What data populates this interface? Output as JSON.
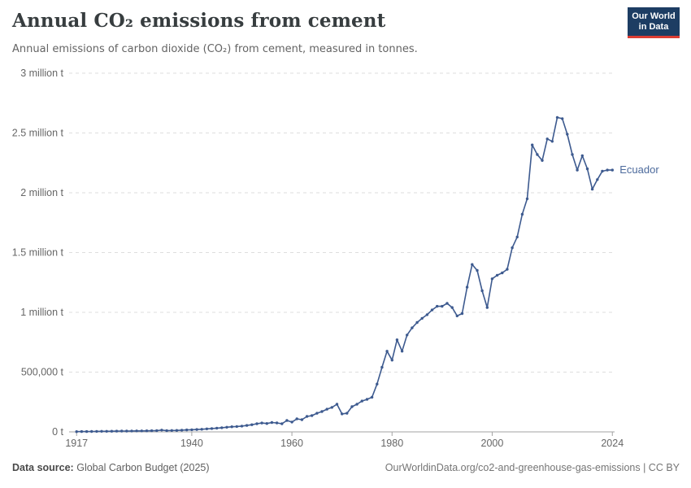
{
  "header": {
    "title": "Annual CO₂ emissions from cement",
    "subtitle": "Annual emissions of carbon dioxide (CO₂) from cement, measured in tonnes."
  },
  "logo": {
    "line1": "Our World",
    "line2": "in Data",
    "bg_color": "#1d3d63",
    "accent_color": "#dc3d33"
  },
  "footer": {
    "source_label": "Data source:",
    "source_value": "Global Carbon Budget (2025)",
    "attribution": "OurWorldinData.org/co2-and-greenhouse-gas-emissions | CC BY"
  },
  "chart_data": {
    "type": "line",
    "entity": "Ecuador",
    "unit": "tonnes",
    "grid": true,
    "xlim": [
      1915.5,
      2025.5
    ],
    "ylim": [
      0,
      3000000
    ],
    "x_ticks": [
      1917,
      1940,
      1960,
      1980,
      2000,
      2024
    ],
    "y_ticks": [
      {
        "value": 0,
        "label": "0 t"
      },
      {
        "value": 500000,
        "label": "500,000 t"
      },
      {
        "value": 1000000,
        "label": "1 million t"
      },
      {
        "value": 1500000,
        "label": "1.5 million t"
      },
      {
        "value": 2000000,
        "label": "2 million t"
      },
      {
        "value": 2500000,
        "label": "2.5 million t"
      },
      {
        "value": 3000000,
        "label": "3 million t"
      }
    ],
    "colors": {
      "line": "#3d5a8f",
      "entity_label": "#4c6a9c",
      "grid": "#dedede",
      "axis": "#a3a3a3",
      "tick_text": "#666666"
    },
    "points": [
      [
        1917,
        2000
      ],
      [
        1918,
        2500
      ],
      [
        1919,
        3000
      ],
      [
        1920,
        3500
      ],
      [
        1921,
        4000
      ],
      [
        1922,
        4500
      ],
      [
        1923,
        5000
      ],
      [
        1924,
        5500
      ],
      [
        1925,
        6000
      ],
      [
        1926,
        6500
      ],
      [
        1927,
        7000
      ],
      [
        1928,
        7500
      ],
      [
        1929,
        8000
      ],
      [
        1930,
        8500
      ],
      [
        1931,
        9000
      ],
      [
        1932,
        9500
      ],
      [
        1933,
        10000
      ],
      [
        1934,
        15000
      ],
      [
        1935,
        10500
      ],
      [
        1936,
        11500
      ],
      [
        1937,
        12500
      ],
      [
        1938,
        14000
      ],
      [
        1939,
        16000
      ],
      [
        1940,
        18000
      ],
      [
        1941,
        20000
      ],
      [
        1942,
        22000
      ],
      [
        1943,
        25000
      ],
      [
        1944,
        28000
      ],
      [
        1945,
        31000
      ],
      [
        1946,
        35000
      ],
      [
        1947,
        39000
      ],
      [
        1948,
        43000
      ],
      [
        1949,
        45000
      ],
      [
        1950,
        48000
      ],
      [
        1951,
        54000
      ],
      [
        1952,
        60000
      ],
      [
        1953,
        68000
      ],
      [
        1954,
        74000
      ],
      [
        1955,
        70000
      ],
      [
        1956,
        78000
      ],
      [
        1957,
        75000
      ],
      [
        1958,
        68000
      ],
      [
        1959,
        95000
      ],
      [
        1960,
        82000
      ],
      [
        1961,
        109000
      ],
      [
        1962,
        102000
      ],
      [
        1963,
        129000
      ],
      [
        1964,
        136000
      ],
      [
        1965,
        156000
      ],
      [
        1966,
        170000
      ],
      [
        1967,
        190000
      ],
      [
        1968,
        205000
      ],
      [
        1969,
        231000
      ],
      [
        1970,
        150000
      ],
      [
        1971,
        156000
      ],
      [
        1972,
        211000
      ],
      [
        1973,
        231000
      ],
      [
        1974,
        258000
      ],
      [
        1975,
        272000
      ],
      [
        1976,
        290000
      ],
      [
        1977,
        400000
      ],
      [
        1978,
        540000
      ],
      [
        1979,
        675000
      ],
      [
        1980,
        600000
      ],
      [
        1981,
        770000
      ],
      [
        1982,
        675000
      ],
      [
        1983,
        810000
      ],
      [
        1984,
        870000
      ],
      [
        1985,
        915000
      ],
      [
        1986,
        950000
      ],
      [
        1987,
        980000
      ],
      [
        1988,
        1020000
      ],
      [
        1989,
        1050000
      ],
      [
        1990,
        1050000
      ],
      [
        1991,
        1075000
      ],
      [
        1992,
        1040000
      ],
      [
        1993,
        970000
      ],
      [
        1994,
        990000
      ],
      [
        1995,
        1210000
      ],
      [
        1996,
        1400000
      ],
      [
        1997,
        1350000
      ],
      [
        1998,
        1180000
      ],
      [
        1999,
        1040000
      ],
      [
        2000,
        1280000
      ],
      [
        2001,
        1310000
      ],
      [
        2002,
        1330000
      ],
      [
        2003,
        1360000
      ],
      [
        2004,
        1540000
      ],
      [
        2005,
        1630000
      ],
      [
        2006,
        1820000
      ],
      [
        2007,
        1950000
      ],
      [
        2008,
        2400000
      ],
      [
        2009,
        2320000
      ],
      [
        2010,
        2270000
      ],
      [
        2011,
        2450000
      ],
      [
        2012,
        2430000
      ],
      [
        2013,
        2630000
      ],
      [
        2014,
        2620000
      ],
      [
        2015,
        2490000
      ],
      [
        2016,
        2320000
      ],
      [
        2017,
        2190000
      ],
      [
        2018,
        2310000
      ],
      [
        2019,
        2200000
      ],
      [
        2020,
        2030000
      ],
      [
        2021,
        2110000
      ],
      [
        2022,
        2180000
      ],
      [
        2023,
        2190000
      ],
      [
        2024,
        2190000
      ]
    ]
  }
}
